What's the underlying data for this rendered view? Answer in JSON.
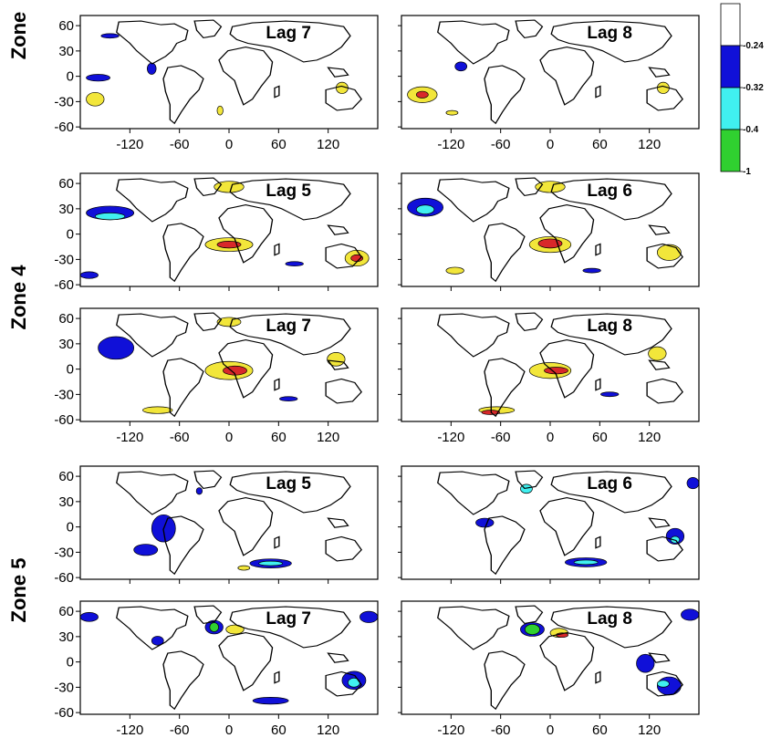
{
  "figure": {
    "zones": [
      {
        "label": "Zone",
        "rows": [
          0
        ]
      },
      {
        "label": "Zone 4",
        "rows": [
          1,
          2
        ]
      },
      {
        "label": "Zone 5",
        "rows": [
          3,
          4
        ]
      }
    ],
    "rows": [
      {
        "panels": [
          {
            "label": "Lag 7"
          },
          {
            "label": "Lag 8"
          }
        ],
        "show_x_ticks": true
      },
      {
        "panels": [
          {
            "label": "Lag 5"
          },
          {
            "label": "Lag 6"
          }
        ],
        "show_x_ticks": false
      },
      {
        "panels": [
          {
            "label": "Lag 7"
          },
          {
            "label": "Lag 8"
          }
        ],
        "show_x_ticks": true
      },
      {
        "panels": [
          {
            "label": "Lag 5"
          },
          {
            "label": "Lag 6"
          }
        ],
        "show_x_ticks": false
      },
      {
        "panels": [
          {
            "label": "Lag 7"
          },
          {
            "label": "Lag 8"
          }
        ],
        "show_x_ticks": true
      }
    ],
    "x_ticks": [
      "-120",
      "-60",
      "0",
      "60",
      "120"
    ],
    "x_tick_values": [
      -120,
      -60,
      0,
      60,
      120
    ],
    "y_ticks": [
      "60",
      "30",
      "0",
      "-30",
      "-60"
    ],
    "y_tick_values": [
      60,
      30,
      0,
      -30,
      -60
    ],
    "lon_range": [
      -180,
      180
    ],
    "lat_range": [
      -62,
      72
    ]
  },
  "colorbar": {
    "labels": [
      "-0.24",
      "-0.32",
      "-0.4",
      "-1"
    ],
    "bands": [
      {
        "color": "#ffffff"
      },
      {
        "color": "#1010d8"
      },
      {
        "color": "#40f0f0"
      },
      {
        "color": "#30d030"
      }
    ]
  },
  "colors": {
    "negative_1": "#1010d8",
    "negative_2": "#40f0f0",
    "negative_3": "#30d030",
    "positive_1": "#f2e63a",
    "positive_2": "#d8282a"
  }
}
